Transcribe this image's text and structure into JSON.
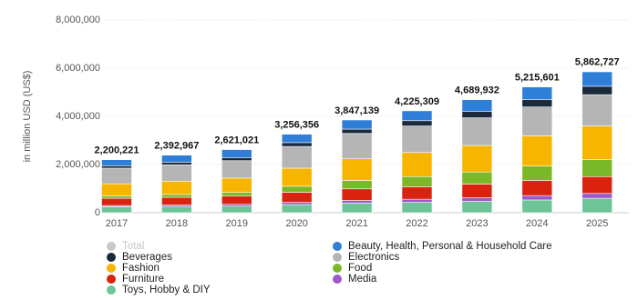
{
  "chart_data": {
    "type": "stacked_bar",
    "y_label": "in million USD (US$)",
    "categories": [
      "2017",
      "2018",
      "2019",
      "2020",
      "2021",
      "2022",
      "2023",
      "2024",
      "2025"
    ],
    "ylim": [
      0,
      8000000
    ],
    "yticks": [
      0,
      {
        "value": 2000000,
        "label": "2,000,000"
      },
      {
        "value": 4000000,
        "label": "4,000,000"
      },
      {
        "value": 6000000,
        "label": "6,000,000"
      },
      {
        "value": 8000000,
        "label": "8,000,000"
      }
    ],
    "grid": true,
    "series": [
      {
        "name": "Total",
        "color": "#c8c8c8",
        "hidden": true,
        "values": [
          2200221,
          2392967,
          2621021,
          3256356,
          3847139,
          4225309,
          4689932,
          5215601,
          5862727
        ],
        "value_labels": [
          "2,200,221",
          "2,392,967",
          "2,621,021",
          "3,256,356",
          "3,847,139",
          "4,225,309",
          "4,689,932",
          "5,215,601",
          "5,862,727"
        ]
      },
      {
        "name": "Toys, Hobby & DIY",
        "color": "#6fc497",
        "values": [
          250000,
          260000,
          280000,
          340000,
          400000,
          430000,
          470000,
          530000,
          600000
        ]
      },
      {
        "name": "Media",
        "color": "#9b59c9",
        "values": [
          50000,
          60000,
          70000,
          90000,
          110000,
          130000,
          150000,
          180000,
          200000
        ]
      },
      {
        "name": "Furniture",
        "color": "#d9230f",
        "values": [
          300000,
          320000,
          340000,
          420000,
          480000,
          520000,
          570000,
          630000,
          700000
        ]
      },
      {
        "name": "Food",
        "color": "#7ab829",
        "values": [
          100000,
          120000,
          150000,
          250000,
          350000,
          420000,
          500000,
          600000,
          700000
        ]
      },
      {
        "name": "Fashion",
        "color": "#f7b500",
        "values": [
          500000,
          550000,
          600000,
          750000,
          900000,
          1000000,
          1100000,
          1250000,
          1400000
        ]
      },
      {
        "name": "Electronics",
        "color": "#b5b5b5",
        "values": [
          650000,
          680000,
          720000,
          900000,
          1050000,
          1100000,
          1150000,
          1200000,
          1300000
        ]
      },
      {
        "name": "Beverages",
        "color": "#1b2a3a",
        "values": [
          100000,
          110000,
          130000,
          160000,
          180000,
          220000,
          260000,
          300000,
          350000
        ]
      },
      {
        "name": "Beauty, Health, Personal & Household Care",
        "color": "#2f7ed8",
        "values": [
          250000,
          290000,
          330000,
          350000,
          380000,
          410000,
          490000,
          530000,
          600000
        ]
      }
    ]
  }
}
